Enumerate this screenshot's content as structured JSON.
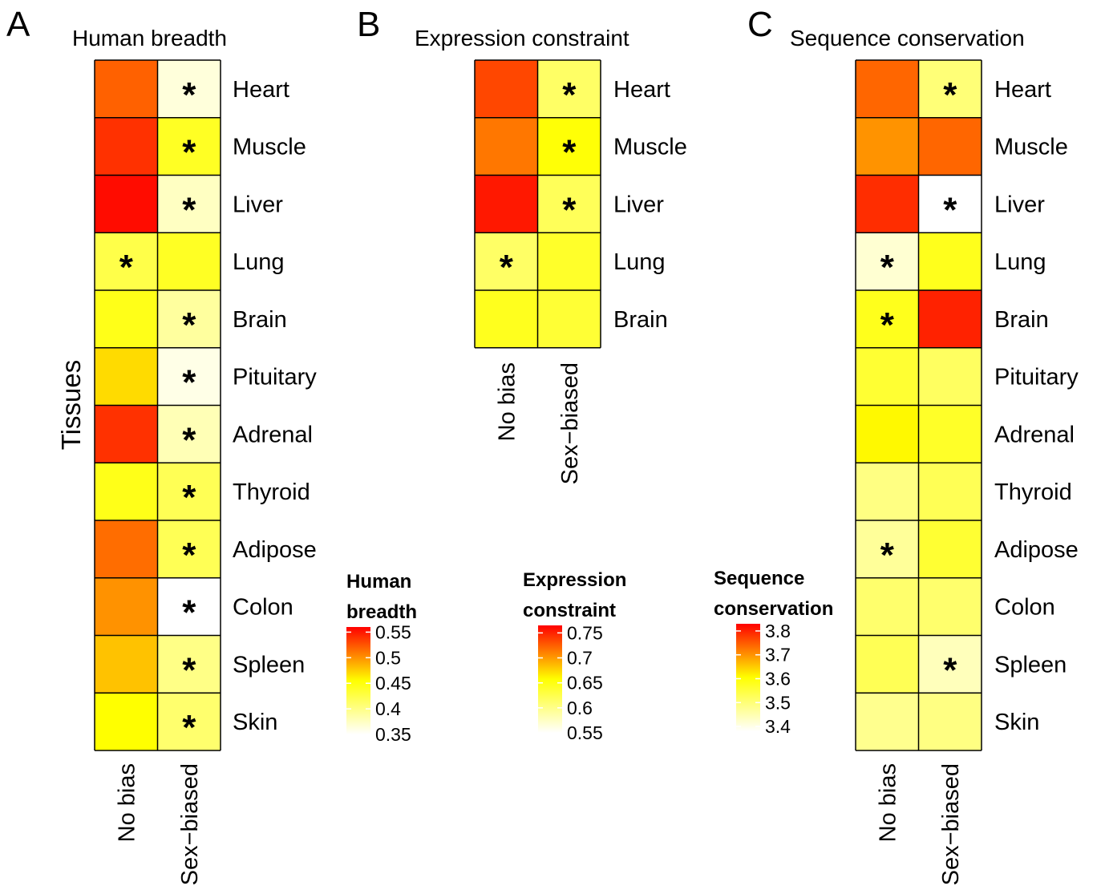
{
  "colors": {
    "low": "#ffffff",
    "mid": "#ffff00",
    "high": "#ff0000",
    "border": "#000000",
    "tick_mark": "#ffffff"
  },
  "chart_data": [
    {
      "type": "heatmap",
      "panel_letter": "A",
      "title": "Human breadth",
      "ylabel": "Tissues",
      "columns": [
        "No bias",
        "Sex−biased"
      ],
      "rows": [
        "Heart",
        "Muscle",
        "Liver",
        "Lung",
        "Brain",
        "Pituitary",
        "Adrenal",
        "Thyroid",
        "Adipose",
        "Colon",
        "Spleen",
        "Skin"
      ],
      "values": [
        [
          0.52,
          0.365
        ],
        [
          0.54,
          0.44
        ],
        [
          0.555,
          0.375
        ],
        [
          0.425,
          0.44
        ],
        [
          0.445,
          0.39
        ],
        [
          0.47,
          0.36
        ],
        [
          0.54,
          0.38
        ],
        [
          0.445,
          0.42
        ],
        [
          0.515,
          0.42
        ],
        [
          0.5,
          0.35
        ],
        [
          0.48,
          0.4
        ],
        [
          0.455,
          0.41
        ]
      ],
      "significant": [
        [
          false,
          true
        ],
        [
          false,
          true
        ],
        [
          false,
          true
        ],
        [
          true,
          false
        ],
        [
          false,
          true
        ],
        [
          false,
          true
        ],
        [
          false,
          true
        ],
        [
          false,
          true
        ],
        [
          false,
          true
        ],
        [
          false,
          true
        ],
        [
          false,
          true
        ],
        [
          false,
          true
        ]
      ],
      "colorbar": {
        "title_lines": [
          "Human",
          "breadth"
        ],
        "range": [
          0.35,
          0.56
        ],
        "ticks": [
          0.55,
          0.5,
          0.45,
          0.4,
          0.35
        ],
        "tick_labels": [
          "0.55",
          "0.5",
          "0.45",
          "0.4",
          "0.35"
        ]
      }
    },
    {
      "type": "heatmap",
      "panel_letter": "B",
      "title": "Expression constraint",
      "ylabel": "",
      "columns": [
        "No bias",
        "Sex−biased"
      ],
      "rows": [
        "Heart",
        "Muscle",
        "Liver",
        "Lung",
        "Brain"
      ],
      "values": [
        [
          0.735,
          0.615
        ],
        [
          0.715,
          0.655
        ],
        [
          0.755,
          0.62
        ],
        [
          0.615,
          0.64
        ],
        [
          0.645,
          0.635
        ]
      ],
      "significant": [
        [
          false,
          true
        ],
        [
          false,
          true
        ],
        [
          false,
          true
        ],
        [
          true,
          false
        ],
        [
          false,
          false
        ]
      ],
      "colorbar": {
        "title_lines": [
          "Expression",
          "constraint"
        ],
        "range": [
          0.55,
          0.765
        ],
        "ticks": [
          0.75,
          0.7,
          0.65,
          0.6,
          0.55
        ],
        "tick_labels": [
          "0.75",
          "0.7",
          "0.65",
          "0.6",
          "0.55"
        ]
      }
    },
    {
      "type": "heatmap",
      "panel_letter": "C",
      "title": "Sequence conservation",
      "ylabel": "",
      "columns": [
        "No bias",
        "Sex−biased"
      ],
      "rows": [
        "Heart",
        "Muscle",
        "Liver",
        "Lung",
        "Brain",
        "Pituitary",
        "Adrenal",
        "Thyroid",
        "Adipose",
        "Colon",
        "Spleen",
        "Skin"
      ],
      "values": [
        [
          3.74,
          3.5
        ],
        [
          3.7,
          3.74
        ],
        [
          3.79,
          3.38
        ],
        [
          3.42,
          3.58
        ],
        [
          3.58,
          3.8
        ],
        [
          3.56,
          3.52
        ],
        [
          3.61,
          3.57
        ],
        [
          3.49,
          3.53
        ],
        [
          3.47,
          3.56
        ],
        [
          3.51,
          3.51
        ],
        [
          3.53,
          3.44
        ],
        [
          3.48,
          3.49
        ]
      ],
      "significant": [
        [
          false,
          true
        ],
        [
          false,
          false
        ],
        [
          false,
          true
        ],
        [
          true,
          false
        ],
        [
          true,
          false
        ],
        [
          false,
          false
        ],
        [
          false,
          false
        ],
        [
          false,
          false
        ],
        [
          true,
          false
        ],
        [
          false,
          false
        ],
        [
          false,
          true
        ],
        [
          false,
          false
        ]
      ],
      "colorbar": {
        "title_lines": [
          "Sequence",
          "conservation"
        ],
        "range": [
          3.38,
          3.83
        ],
        "ticks": [
          3.8,
          3.7,
          3.6,
          3.5,
          3.4
        ],
        "tick_labels": [
          "3.8",
          "3.7",
          "3.6",
          "3.5",
          "3.4"
        ]
      }
    }
  ]
}
